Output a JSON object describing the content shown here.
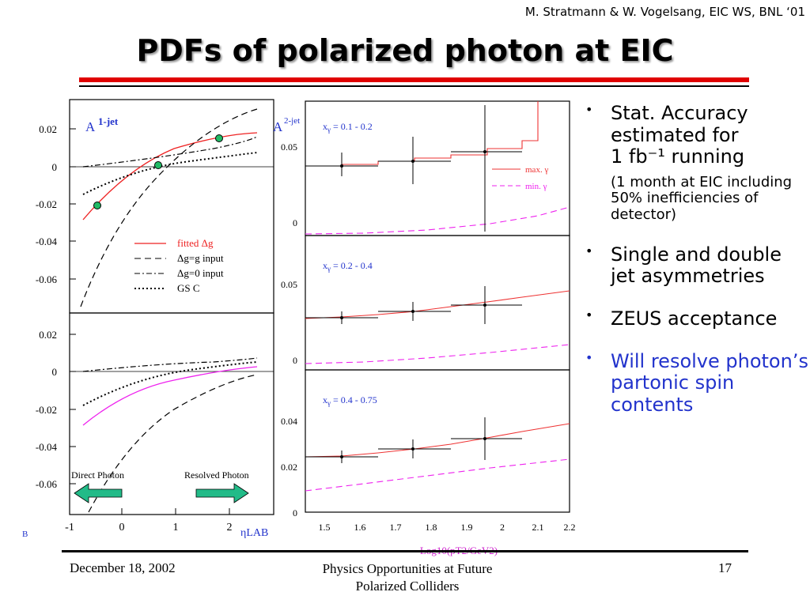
{
  "header": {
    "credit": "M. Stratmann & W. Vogelsang, EIC WS, BNL ‘01",
    "title": "PDFs of polarized photon at EIC"
  },
  "left_plot": {
    "top_label_main": "A",
    "top_label_sup": "1-jet",
    "top_yticks": [
      "0.02",
      "0",
      "-0.02",
      "-0.04",
      "-0.06"
    ],
    "bottom_yticks": [
      "0.02",
      "0",
      "-0.02",
      "-0.04",
      "-0.06"
    ],
    "xticks": [
      "-1",
      "0",
      "1",
      "2"
    ],
    "xlabel": "ηLAB",
    "legend": [
      "fitted Δg",
      "Δg=g input",
      "Δg=0 input",
      "GS C"
    ],
    "direct_photon": "Direct Photon",
    "resolved_photon": "Resolved Photon",
    "corner_label": "B",
    "colors": {
      "fitted_top": "#ee2222",
      "fitted_bottom": "#ee22ee",
      "marker": "#22bb66",
      "arrow": "#22bb88"
    }
  },
  "right_plot": {
    "label_main": "A",
    "label_sup": "2-jet",
    "panels": [
      {
        "range": "x",
        "range_sub": "γ",
        "range_text": " = 0.1 - 0.2",
        "yticks": [
          "0.05",
          "0"
        ]
      },
      {
        "range": "x",
        "range_sub": "γ",
        "range_text": " = 0.2 - 0.4",
        "yticks": [
          "0.05",
          "0"
        ]
      },
      {
        "range": "x",
        "range_sub": "γ",
        "range_text": " = 0.4 - 0.75",
        "yticks": [
          "0.04",
          "0.02",
          "0"
        ]
      }
    ],
    "legend": [
      "max. γ",
      "min. γ"
    ],
    "xticks": [
      "1.5",
      "1.6",
      "1.7",
      "1.8",
      "1.9",
      "2",
      "2.1",
      "2.2"
    ],
    "xlabel": "Log10(pT2/GeV2)",
    "colors": {
      "max": "#ee3333",
      "min": "#ee22ee"
    }
  },
  "bullets": [
    {
      "line1": "Stat. Accuracy",
      "line2": "estimated for",
      "line3": "1 fb⁻¹ running"
    },
    {
      "note": "(1 month at EIC including 50% inefficiencies of detector)"
    },
    {
      "text": "Single and double jet asymmetries"
    },
    {
      "text": "ZEUS acceptance"
    },
    {
      "text": "Will resolve photon’s partonic spin contents"
    }
  ],
  "footer": {
    "date": "December 18, 2002",
    "center_line1": "Physics Opportunities at Future",
    "center_line2": "Polarized Colliders",
    "page": "17"
  }
}
